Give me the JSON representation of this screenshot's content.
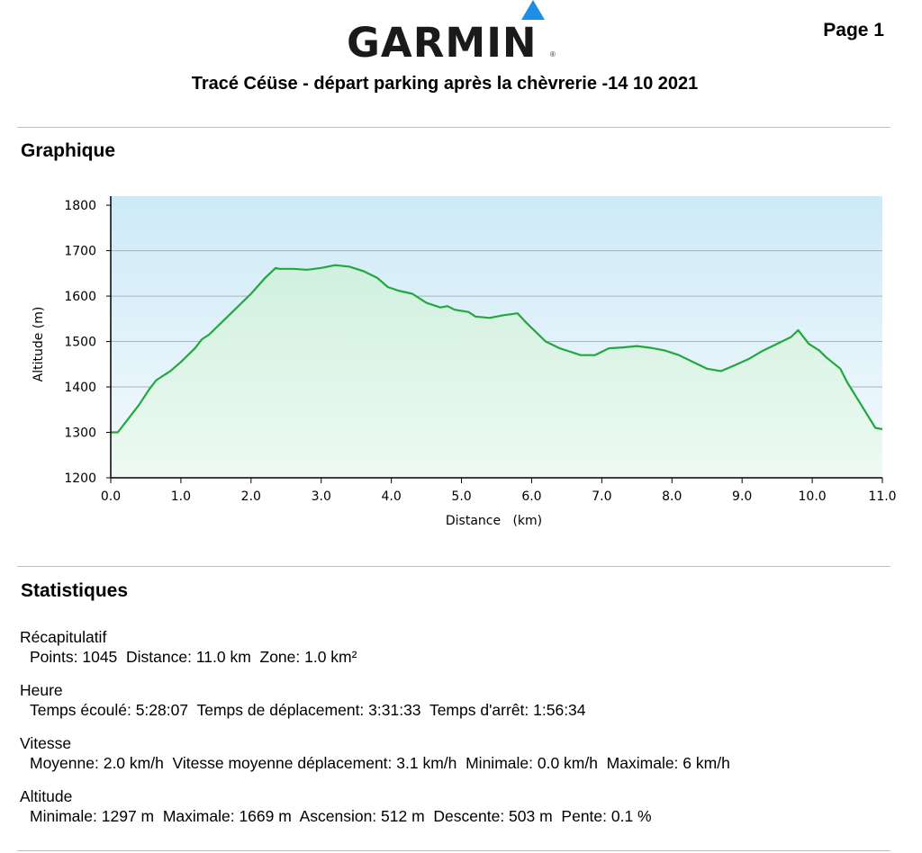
{
  "header": {
    "logo_text": "GARMIN",
    "logo_reg": "®",
    "page_label": "Page 1",
    "title": "Tracé Céüse - départ parking après la chèvrerie -14 10 2021"
  },
  "sections": {
    "chart_heading": "Graphique",
    "stats_heading": "Statistiques"
  },
  "chart_data": {
    "type": "area",
    "xlabel": "Distance   (km)",
    "ylabel": "Altitude (m)",
    "xlim": [
      0,
      11
    ],
    "ylim": [
      1200,
      1800
    ],
    "x_ticks": [
      "0.0",
      "1.0",
      "2.0",
      "3.0",
      "4.0",
      "5.0",
      "6.0",
      "7.0",
      "8.0",
      "9.0",
      "10.0",
      "11.0"
    ],
    "y_ticks": [
      "1800",
      "1700",
      "1600",
      "1500",
      "1400",
      "1300",
      "1200"
    ],
    "grid": true,
    "line_color": "#22a83f",
    "series": [
      {
        "x": [
          0.0,
          0.1,
          0.15,
          0.25,
          0.4,
          0.55,
          0.65,
          0.8,
          0.85,
          1.0,
          1.2,
          1.3,
          1.4,
          1.6,
          1.8,
          2.0,
          2.2,
          2.35,
          2.4,
          2.6,
          2.8,
          3.0,
          3.2,
          3.4,
          3.6,
          3.8,
          3.95,
          4.1,
          4.3,
          4.5,
          4.7,
          4.8,
          4.9,
          5.1,
          5.2,
          5.4,
          5.6,
          5.8,
          5.9,
          6.0,
          6.2,
          6.4,
          6.7,
          6.9,
          7.1,
          7.3,
          7.5,
          7.7,
          7.9,
          8.1,
          8.3,
          8.5,
          8.7,
          8.9,
          9.1,
          9.3,
          9.5,
          9.7,
          9.8,
          9.95,
          10.1,
          10.2,
          10.4,
          10.5,
          10.7,
          10.9,
          11.0
        ],
        "y": [
          1300,
          1300,
          1310,
          1330,
          1360,
          1395,
          1415,
          1430,
          1435,
          1455,
          1485,
          1505,
          1515,
          1545,
          1575,
          1605,
          1640,
          1662,
          1660,
          1660,
          1658,
          1662,
          1668,
          1665,
          1655,
          1640,
          1620,
          1612,
          1605,
          1585,
          1575,
          1578,
          1570,
          1565,
          1555,
          1552,
          1558,
          1562,
          1545,
          1530,
          1500,
          1485,
          1470,
          1470,
          1485,
          1487,
          1490,
          1486,
          1480,
          1470,
          1455,
          1440,
          1435,
          1448,
          1462,
          1480,
          1495,
          1510,
          1525,
          1495,
          1480,
          1465,
          1440,
          1410,
          1360,
          1310,
          1307
        ]
      }
    ]
  },
  "stats": [
    {
      "title": "Récapitulatif",
      "line": "Points: 1045  Distance: 11.0 km  Zone: 1.0 km²"
    },
    {
      "title": "Heure",
      "line": "Temps écoulé: 5:28:07  Temps de déplacement: 3:31:33  Temps d'arrêt: 1:56:34"
    },
    {
      "title": "Vitesse",
      "line": "Moyenne: 2.0 km/h  Vitesse moyenne déplacement: 3.1 km/h  Minimale: 0.0 km/h  Maximale: 6 km/h"
    },
    {
      "title": "Altitude",
      "line": "Minimale: 1297 m  Maximale: 1669 m  Ascension: 512 m  Descente: 503 m  Pente: 0.1 %"
    }
  ]
}
